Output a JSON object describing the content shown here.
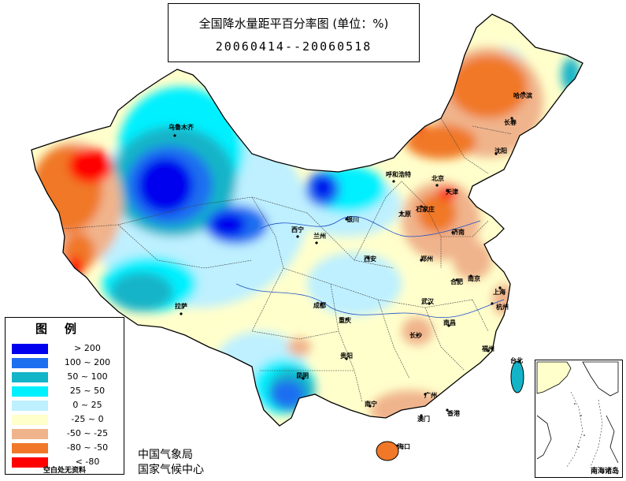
{
  "title": "全国降水量距平百分率图 (单位：%)",
  "period": "20060414--20060518",
  "legend": {
    "title": "图例",
    "items": [
      {
        "label": "> 200",
        "color": "#0000ee"
      },
      {
        "label": "100 ~ 200",
        "color": "#1e6ef0"
      },
      {
        "label": "50 ~ 100",
        "color": "#14b4c8"
      },
      {
        "label": "25 ~ 50",
        "color": "#00f0ff"
      },
      {
        "label": "0 ~ 25",
        "color": "#bef0ff"
      },
      {
        "label": "-25 ~ 0",
        "color": "#ffffcc"
      },
      {
        "label": "-50 ~ -25",
        "color": "#f0b48c"
      },
      {
        "label": "-80 ~ -50",
        "color": "#f07828"
      },
      {
        "label": "< -80",
        "color": "#ff0000"
      }
    ],
    "no_data_note": "空白处无资料"
  },
  "organization": {
    "line1": "中国气象局",
    "line2": "国家气候中心"
  },
  "inset_label": "南海诸岛",
  "cities": {
    "urumqi": "乌鲁木齐",
    "lhasa": "拉萨",
    "xining": "西宁",
    "lanzhou": "兰州",
    "yinchuan": "银川",
    "hohhot": "呼和浩特",
    "beijing": "北京",
    "tianjin": "天津",
    "shijiazhuang": "石家庄",
    "taiyuan": "太原",
    "jinan": "济南",
    "zhengzhou": "郑州",
    "xian": "西安",
    "chengdu": "成都",
    "chongqing": "重庆",
    "guiyang": "贵阳",
    "kunming": "昆明",
    "nanning": "南宁",
    "guangzhou": "广州",
    "hongkong": "香港",
    "macau": "澳门",
    "haikou": "海口",
    "changsha": "长沙",
    "wuhan": "武汉",
    "nanchang": "南昌",
    "hefei": "合肥",
    "nanjing": "南京",
    "shanghai": "上海",
    "hangzhou": "杭州",
    "fuzhou": "福州",
    "taibei": "台北",
    "shenyang": "沈阳",
    "changchun": "长春",
    "harbin": "哈尔滨"
  }
}
